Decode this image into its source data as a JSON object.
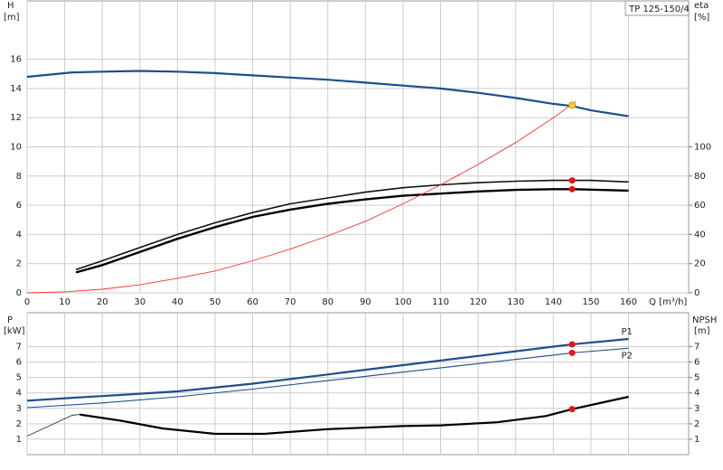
{
  "chart_data": [
    {
      "type": "line",
      "model": "TP 125-150/4",
      "ylabel": "H",
      "yunit": "[m]",
      "y2label": "eta",
      "y2unit": "[%]",
      "xlabel": "Q [m³/h]",
      "xlim": [
        0,
        176
      ],
      "xticks": [
        0,
        10,
        20,
        30,
        40,
        50,
        60,
        70,
        80,
        90,
        100,
        110,
        120,
        130,
        140,
        150,
        160
      ],
      "ylim": [
        0,
        20
      ],
      "yticks": [
        0,
        2,
        4,
        6,
        8,
        10,
        12,
        14,
        16
      ],
      "y2lim": [
        0,
        200
      ],
      "y2ticks": [
        0,
        20,
        40,
        60,
        80,
        100
      ],
      "grid": true,
      "series": [
        {
          "color": "#1f4e8c",
          "width": 2.2,
          "x": [
            0,
            12,
            20,
            30,
            40,
            50,
            60,
            70,
            80,
            90,
            100,
            110,
            120,
            130,
            140,
            145,
            150,
            160
          ],
          "values": [
            14.8,
            15.1,
            15.15,
            15.2,
            15.15,
            15.05,
            14.9,
            14.75,
            14.6,
            14.4,
            14.2,
            14.0,
            13.7,
            13.35,
            12.95,
            12.8,
            12.5,
            12.1
          ]
        },
        {
          "color": "#111111",
          "width": 1.6,
          "axis": "y2",
          "x": [
            13,
            20,
            30,
            40,
            50,
            60,
            70,
            80,
            90,
            100,
            110,
            120,
            130,
            140,
            145,
            150,
            160
          ],
          "values": [
            16,
            22,
            31,
            40,
            48,
            55,
            61,
            65,
            69,
            72,
            74,
            75.5,
            76.5,
            77,
            77,
            77,
            76
          ]
        },
        {
          "color": "#000000",
          "width": 2.4,
          "axis": "y2",
          "x": [
            13,
            20,
            30,
            40,
            50,
            60,
            70,
            80,
            90,
            100,
            110,
            120,
            130,
            140,
            145,
            160
          ],
          "values": [
            14,
            19,
            28,
            37,
            45,
            52,
            57,
            61,
            64,
            66.5,
            68,
            69.5,
            70.5,
            71,
            71,
            70
          ]
        },
        {
          "color": "#ff3030",
          "width": 0.9,
          "x": [
            0,
            10,
            20,
            30,
            40,
            50,
            60,
            70,
            80,
            90,
            100,
            110,
            120,
            130,
            140,
            146
          ],
          "values": [
            0,
            0.07,
            0.25,
            0.55,
            1.0,
            1.5,
            2.2,
            3.0,
            3.9,
            4.9,
            6.1,
            7.4,
            8.8,
            10.3,
            12.0,
            13.1
          ]
        }
      ],
      "points": [
        {
          "x": 145,
          "y": 12.85,
          "color": "#ffd21f"
        },
        {
          "x": 145,
          "y": 77,
          "axis": "y2",
          "color": "#ee1111"
        },
        {
          "x": 145,
          "y": 71,
          "axis": "y2",
          "color": "#ee1111"
        }
      ]
    },
    {
      "type": "line",
      "ylabel": "P",
      "yunit": "[kW]",
      "y2label": "NPSH",
      "y2unit": "[m]",
      "xlim": [
        0,
        176
      ],
      "ylim": [
        0,
        9.2
      ],
      "yticks": [
        1,
        2,
        3,
        4,
        5,
        6,
        7
      ],
      "y2lim": [
        0,
        9.2
      ],
      "y2ticks": [
        1,
        2,
        3,
        4,
        5,
        6,
        7
      ],
      "grid": true,
      "series": [
        {
          "name": "P1",
          "color": "#1f4e8c",
          "width": 2.2,
          "x": [
            0,
            13,
            20,
            40,
            60,
            80,
            100,
            120,
            140,
            145,
            160
          ],
          "values": [
            3.5,
            3.7,
            3.8,
            4.1,
            4.6,
            5.2,
            5.8,
            6.4,
            7.0,
            7.15,
            7.5
          ]
        },
        {
          "name": "P2",
          "color": "#1f4e8c",
          "width": 1.1,
          "x": [
            0,
            20,
            40,
            60,
            80,
            100,
            120,
            140,
            145,
            160
          ],
          "values": [
            3.05,
            3.35,
            3.75,
            4.25,
            4.8,
            5.35,
            5.9,
            6.45,
            6.6,
            6.9
          ]
        },
        {
          "color": "#333333",
          "width": 0.9,
          "axis": "y2",
          "x": [
            0,
            12,
            14
          ],
          "values": [
            1.2,
            2.55,
            2.6
          ]
        },
        {
          "color": "#000000",
          "width": 2.2,
          "axis": "y2",
          "x": [
            14,
            25,
            36,
            50,
            63,
            80,
            100,
            110,
            125,
            138,
            145,
            160
          ],
          "values": [
            2.6,
            2.2,
            1.7,
            1.35,
            1.35,
            1.65,
            1.85,
            1.9,
            2.1,
            2.5,
            2.95,
            3.75
          ]
        }
      ],
      "points": [
        {
          "x": 145,
          "y": 7.15,
          "color": "#ee1111"
        },
        {
          "x": 145,
          "y": 6.6,
          "color": "#ee1111"
        },
        {
          "x": 145,
          "y": 2.95,
          "axis": "y2",
          "color": "#ee1111"
        }
      ]
    }
  ]
}
